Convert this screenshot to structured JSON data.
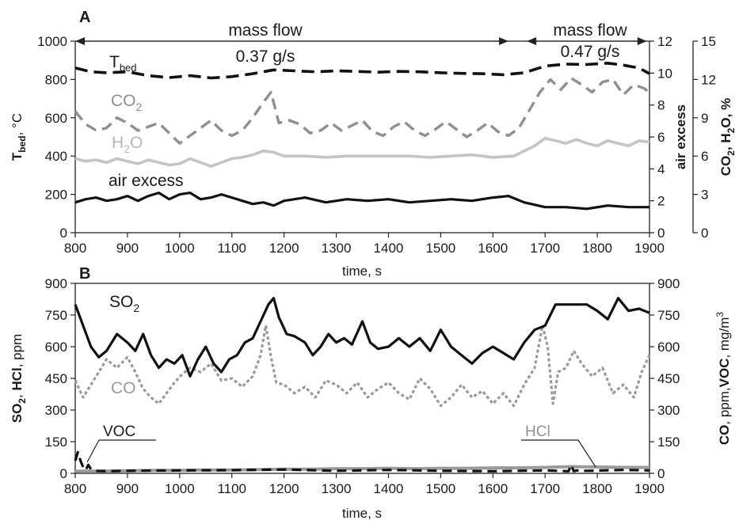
{
  "colors": {
    "black": "#111111",
    "gray": "#8f8f8f",
    "light_gray": "#c4c4c4",
    "mid_gray": "#9a9a9a"
  },
  "chart_data": [
    {
      "panel": "A",
      "type": "line",
      "xlabel": "time, s",
      "xlim": [
        800,
        1900
      ],
      "xticks": [
        800,
        900,
        1000,
        1100,
        1200,
        1300,
        1400,
        1500,
        1600,
        1700,
        1800,
        1900
      ],
      "y_left": {
        "label_main": "T",
        "label_sub": "bed",
        "label_rest": ", °C",
        "lim": [
          0,
          1000
        ],
        "ticks": [
          0,
          200,
          400,
          600,
          800,
          1000
        ]
      },
      "y_right1": {
        "label": "air excess",
        "lim": [
          0,
          12
        ],
        "ticks": [
          0,
          2,
          4,
          6,
          8,
          10,
          12
        ]
      },
      "y_right2": {
        "label_parts": [
          "CO",
          "2",
          ", ",
          "H",
          "2",
          "O",
          ", %"
        ],
        "lim": [
          0,
          15
        ],
        "ticks": [
          0,
          3,
          6,
          9,
          12,
          15
        ]
      },
      "annotations": {
        "mass_flow_1_label": "mass flow",
        "mass_flow_1_value": "0.37 g/s",
        "mass_flow_1_range": [
          800,
          1630
        ],
        "mass_flow_2_label": "mass flow",
        "mass_flow_2_value": "0.47 g/s",
        "mass_flow_2_range": [
          1665,
          1895
        ]
      },
      "series_labels": {
        "tbed_main": "T",
        "tbed_sub": "bed",
        "co2_main": "CO",
        "co2_sub": "2",
        "h2o_main": "H",
        "h2o_sub": "2",
        "h2o_end": "O",
        "air": "air excess"
      },
      "series": [
        {
          "name": "Tbed",
          "axis": "left",
          "style": "dashed",
          "x": [
            800,
            830,
            860,
            900,
            940,
            980,
            1020,
            1060,
            1100,
            1140,
            1180,
            1220,
            1260,
            1300,
            1340,
            1380,
            1420,
            1460,
            1500,
            1540,
            1580,
            1620,
            1660,
            1700,
            1740,
            1780,
            1820,
            1850,
            1880,
            1900
          ],
          "y": [
            860,
            840,
            835,
            840,
            820,
            810,
            820,
            808,
            815,
            830,
            850,
            845,
            840,
            845,
            842,
            838,
            842,
            840,
            835,
            832,
            830,
            825,
            835,
            870,
            880,
            878,
            885,
            875,
            860,
            830
          ]
        },
        {
          "name": "CO2",
          "axis": "right2",
          "style": "dashed",
          "x": [
            800,
            820,
            840,
            860,
            880,
            900,
            920,
            940,
            960,
            980,
            1000,
            1020,
            1040,
            1060,
            1080,
            1100,
            1120,
            1140,
            1160,
            1175,
            1190,
            1210,
            1230,
            1250,
            1270,
            1290,
            1310,
            1330,
            1350,
            1370,
            1390,
            1410,
            1430,
            1450,
            1470,
            1490,
            1510,
            1530,
            1550,
            1570,
            1590,
            1610,
            1630,
            1650,
            1670,
            1690,
            1710,
            1730,
            1750,
            1770,
            1790,
            1810,
            1830,
            1850,
            1870,
            1890,
            1900
          ],
          "y": [
            9.5,
            8.5,
            8.0,
            8.2,
            9.0,
            8.6,
            8.0,
            8.3,
            8.6,
            7.8,
            7.0,
            7.6,
            8.2,
            8.8,
            8.0,
            7.6,
            8.0,
            9.0,
            10.2,
            11.0,
            8.6,
            8.8,
            8.5,
            7.8,
            8.0,
            8.6,
            8.0,
            8.4,
            8.8,
            7.9,
            7.6,
            8.3,
            8.7,
            8.0,
            7.6,
            8.1,
            8.7,
            8.1,
            7.5,
            8.0,
            8.6,
            7.9,
            7.6,
            8.2,
            9.6,
            11.0,
            12.0,
            11.2,
            12.1,
            11.6,
            11.0,
            11.8,
            12.0,
            10.8,
            11.6,
            11.3,
            11.0
          ]
        },
        {
          "name": "H2O",
          "axis": "right2",
          "style": "solid",
          "x": [
            800,
            820,
            840,
            860,
            880,
            900,
            920,
            940,
            960,
            980,
            1000,
            1020,
            1040,
            1060,
            1080,
            1100,
            1120,
            1140,
            1160,
            1180,
            1200,
            1240,
            1280,
            1320,
            1360,
            1400,
            1440,
            1480,
            1520,
            1560,
            1600,
            1640,
            1660,
            1680,
            1700,
            1720,
            1740,
            1760,
            1780,
            1800,
            1820,
            1840,
            1860,
            1880,
            1900
          ],
          "y": [
            5.8,
            5.6,
            5.7,
            5.5,
            5.8,
            5.6,
            5.4,
            5.7,
            5.5,
            5.3,
            5.4,
            5.8,
            5.5,
            5.2,
            5.5,
            5.8,
            5.9,
            6.1,
            6.4,
            6.3,
            6.0,
            6.0,
            5.9,
            6.0,
            6.0,
            6.0,
            6.0,
            5.9,
            6.0,
            6.1,
            5.9,
            6.0,
            6.4,
            6.8,
            7.4,
            7.2,
            7.0,
            7.3,
            7.0,
            6.8,
            7.2,
            7.0,
            6.8,
            7.2,
            7.1
          ]
        },
        {
          "name": "air excess",
          "axis": "right1",
          "style": "solid",
          "x": [
            800,
            820,
            840,
            860,
            880,
            900,
            920,
            940,
            960,
            980,
            1000,
            1020,
            1040,
            1060,
            1080,
            1100,
            1120,
            1140,
            1160,
            1180,
            1200,
            1240,
            1280,
            1320,
            1360,
            1400,
            1440,
            1480,
            1520,
            1560,
            1600,
            1630,
            1660,
            1700,
            1740,
            1780,
            1820,
            1860,
            1900
          ],
          "y": [
            1.9,
            2.1,
            2.2,
            2.0,
            2.1,
            2.3,
            2.0,
            2.3,
            2.5,
            2.1,
            2.4,
            2.5,
            2.1,
            2.2,
            2.4,
            2.2,
            2.0,
            1.8,
            1.9,
            1.7,
            2.0,
            2.2,
            1.9,
            2.1,
            2.0,
            2.1,
            1.9,
            2.0,
            2.1,
            2.0,
            2.2,
            2.3,
            1.9,
            1.6,
            1.6,
            1.5,
            1.7,
            1.6,
            1.6
          ]
        }
      ]
    },
    {
      "panel": "B",
      "type": "line",
      "xlabel": "time, s",
      "xlim": [
        800,
        1900
      ],
      "xticks": [
        800,
        900,
        1000,
        1100,
        1200,
        1300,
        1400,
        1500,
        1600,
        1700,
        1800,
        1900
      ],
      "y_left": {
        "label_parts": [
          "SO",
          "2",
          ", ",
          "HCl",
          ", ppm"
        ],
        "lim": [
          0,
          900
        ],
        "ticks": [
          0,
          150,
          300,
          450,
          600,
          750,
          900
        ]
      },
      "y_right": {
        "label_parts": [
          "CO",
          ", ppm,",
          "VOC",
          ", mg/m",
          "3"
        ],
        "lim": [
          0,
          900
        ],
        "ticks": [
          0,
          150,
          300,
          450,
          600,
          750,
          900
        ]
      },
      "series_labels": {
        "so2_main": "SO",
        "so2_sub": "2",
        "co": "CO",
        "voc": "VOC",
        "hcl": "HCl"
      },
      "series": [
        {
          "name": "SO2",
          "style": "solid",
          "x": [
            800,
            815,
            830,
            845,
            860,
            880,
            900,
            915,
            930,
            945,
            960,
            975,
            990,
            1005,
            1020,
            1035,
            1050,
            1065,
            1080,
            1095,
            1110,
            1125,
            1140,
            1155,
            1170,
            1180,
            1190,
            1205,
            1220,
            1240,
            1255,
            1270,
            1285,
            1300,
            1315,
            1330,
            1350,
            1365,
            1380,
            1400,
            1420,
            1440,
            1460,
            1480,
            1500,
            1520,
            1540,
            1560,
            1580,
            1600,
            1620,
            1640,
            1660,
            1680,
            1700,
            1720,
            1740,
            1760,
            1780,
            1800,
            1820,
            1840,
            1860,
            1880,
            1900
          ],
          "y": [
            800,
            700,
            600,
            550,
            580,
            660,
            620,
            580,
            660,
            560,
            500,
            540,
            520,
            560,
            460,
            540,
            600,
            520,
            480,
            540,
            560,
            620,
            640,
            720,
            800,
            830,
            740,
            660,
            650,
            620,
            560,
            600,
            660,
            620,
            640,
            610,
            720,
            620,
            590,
            600,
            640,
            600,
            640,
            580,
            680,
            600,
            560,
            520,
            570,
            600,
            570,
            540,
            620,
            680,
            700,
            800,
            800,
            800,
            800,
            770,
            730,
            830,
            770,
            780,
            760
          ]
        },
        {
          "name": "CO",
          "style": "dotted",
          "x": [
            800,
            815,
            830,
            845,
            860,
            880,
            900,
            915,
            930,
            945,
            960,
            975,
            990,
            1005,
            1020,
            1040,
            1060,
            1080,
            1100,
            1120,
            1140,
            1155,
            1165,
            1175,
            1185,
            1200,
            1220,
            1240,
            1260,
            1280,
            1300,
            1320,
            1340,
            1360,
            1380,
            1400,
            1420,
            1440,
            1460,
            1480,
            1500,
            1520,
            1540,
            1560,
            1580,
            1600,
            1620,
            1640,
            1660,
            1680,
            1695,
            1705,
            1715,
            1725,
            1740,
            1755,
            1770,
            1790,
            1810,
            1830,
            1850,
            1870,
            1885,
            1900
          ],
          "y": [
            440,
            360,
            420,
            480,
            540,
            500,
            550,
            480,
            400,
            360,
            330,
            380,
            430,
            470,
            500,
            480,
            520,
            440,
            450,
            410,
            460,
            560,
            700,
            550,
            430,
            420,
            380,
            410,
            360,
            440,
            420,
            380,
            430,
            360,
            400,
            430,
            380,
            350,
            450,
            400,
            320,
            360,
            420,
            360,
            390,
            330,
            380,
            320,
            420,
            500,
            700,
            600,
            330,
            480,
            500,
            580,
            520,
            460,
            500,
            380,
            420,
            360,
            480,
            560
          ]
        },
        {
          "name": "VOC",
          "style": "dashed",
          "x": [
            800,
            805,
            810,
            815,
            820,
            825,
            830,
            840,
            860,
            900,
            1000,
            1100,
            1200,
            1300,
            1400,
            1500,
            1600,
            1700,
            1745,
            1750,
            1755,
            1760,
            1780,
            1850,
            1900
          ],
          "y": [
            60,
            100,
            60,
            30,
            15,
            40,
            20,
            12,
            10,
            12,
            14,
            15,
            18,
            12,
            16,
            12,
            10,
            14,
            10,
            40,
            10,
            14,
            12,
            16,
            14
          ]
        },
        {
          "name": "HCl",
          "style": "solid",
          "x": [
            800,
            850,
            900,
            950,
            1000,
            1050,
            1100,
            1150,
            1200,
            1250,
            1300,
            1350,
            1400,
            1450,
            1500,
            1550,
            1600,
            1650,
            1700,
            1750,
            1800,
            1850,
            1900
          ],
          "y": [
            10,
            10,
            12,
            14,
            14,
            16,
            16,
            18,
            20,
            20,
            22,
            22,
            24,
            22,
            24,
            24,
            26,
            26,
            28,
            32,
            30,
            28,
            28
          ]
        }
      ]
    }
  ]
}
